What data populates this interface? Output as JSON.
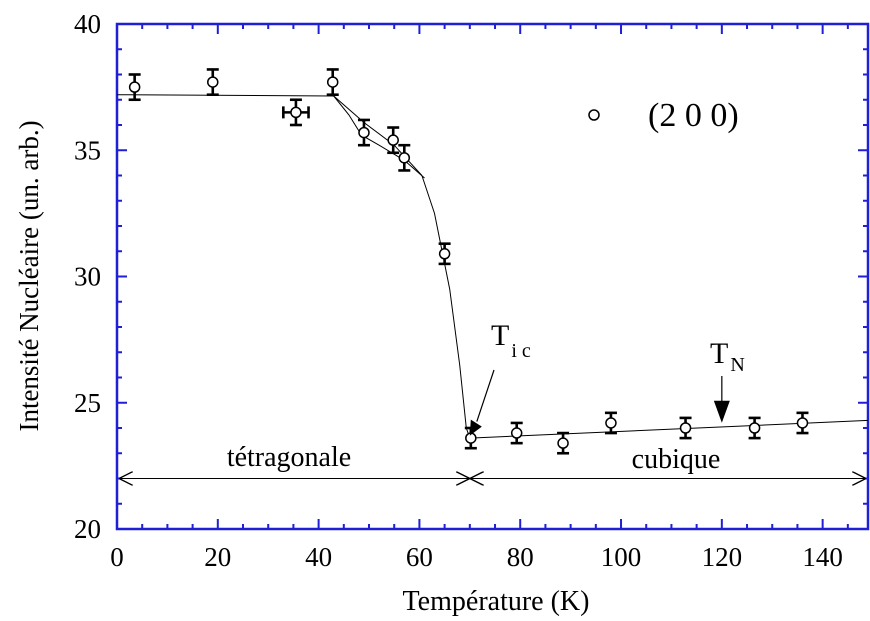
{
  "chart_data": {
    "type": "scatter",
    "xlabel": "Température (K)",
    "ylabel": "Intensité Nucléaire  (un. arb.)",
    "xlim": [
      0,
      149
    ],
    "ylim": [
      20,
      40
    ],
    "xticks": [
      0,
      20,
      40,
      60,
      80,
      100,
      120,
      140
    ],
    "yticks": [
      20,
      25,
      30,
      35,
      40
    ],
    "frame_color": "#1f1fd6",
    "series": [
      {
        "name": "(2 0 0)",
        "marker": "open-circle",
        "points": [
          {
            "x": 3.5,
            "y": 37.5,
            "yerr": 0.5,
            "xerr": 0
          },
          {
            "x": 19,
            "y": 37.7,
            "yerr": 0.5,
            "xerr": 0
          },
          {
            "x": 35.5,
            "y": 36.5,
            "yerr": 0.5,
            "xerr": 2.5
          },
          {
            "x": 42.8,
            "y": 37.7,
            "yerr": 0.5,
            "xerr": 0
          },
          {
            "x": 49,
            "y": 35.7,
            "yerr": 0.5,
            "xerr": 0
          },
          {
            "x": 54.8,
            "y": 35.4,
            "yerr": 0.5,
            "xerr": 0
          },
          {
            "x": 57,
            "y": 34.7,
            "yerr": 0.5,
            "xerr": 0
          },
          {
            "x": 65,
            "y": 30.9,
            "yerr": 0.4,
            "xerr": 0
          },
          {
            "x": 70.2,
            "y": 23.6,
            "yerr": 0.4,
            "xerr": 0
          },
          {
            "x": 79.3,
            "y": 23.8,
            "yerr": 0.4,
            "xerr": 0
          },
          {
            "x": 88.5,
            "y": 23.4,
            "yerr": 0.4,
            "xerr": 0
          },
          {
            "x": 98,
            "y": 24.2,
            "yerr": 0.4,
            "xerr": 0
          },
          {
            "x": 112.8,
            "y": 24.0,
            "yerr": 0.4,
            "xerr": 0
          },
          {
            "x": 126.5,
            "y": 24.0,
            "yerr": 0.4,
            "xerr": 0
          },
          {
            "x": 136,
            "y": 24.2,
            "yerr": 0.4,
            "xerr": 0
          }
        ]
      }
    ],
    "fit_lines": [
      [
        [
          0,
          37.2
        ],
        [
          43,
          37.15
        ],
        [
          49,
          36.1
        ],
        [
          55,
          35.2
        ],
        [
          60.5,
          34.0
        ]
      ],
      [
        [
          60.5,
          34.0
        ],
        [
          63,
          32.5
        ],
        [
          66,
          29.5
        ],
        [
          68,
          26.5
        ],
        [
          69.3,
          24.0
        ],
        [
          70,
          23.6
        ]
      ],
      [
        [
          43,
          37.15
        ],
        [
          46,
          36.4
        ],
        [
          48.5,
          35.6
        ],
        [
          52,
          35.2
        ],
        [
          57,
          34.6
        ],
        [
          61,
          33.9
        ]
      ],
      [
        [
          70,
          23.6
        ],
        [
          149,
          24.3
        ]
      ]
    ],
    "legend": {
      "label": "(2 0 0)",
      "placement": "top-right"
    },
    "annotations": {
      "tic_main": "T",
      "tic_sub": "i c",
      "tn_main": "T",
      "tn_sub": "N",
      "tic_arrow_to": [
        70,
        23.7
      ],
      "tn_arrow_to": [
        120,
        24.05
      ],
      "tetragonale": "tétragonale",
      "cubique": "cubique",
      "phase_boundary_x": 70,
      "phase_arrow_y": 22
    }
  }
}
